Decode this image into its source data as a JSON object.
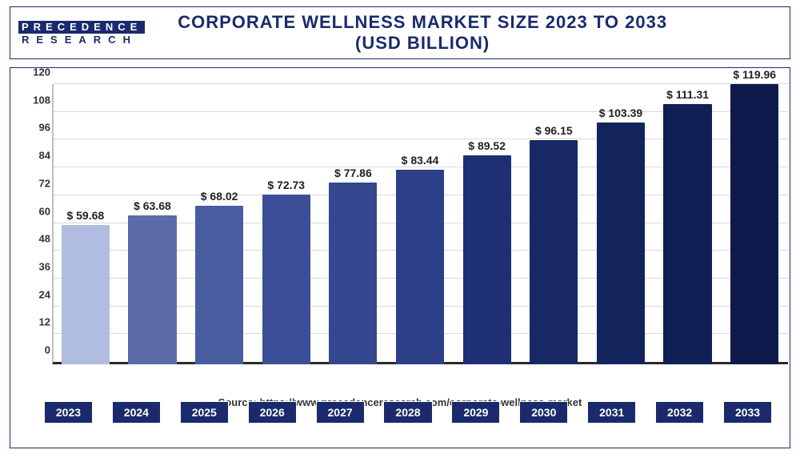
{
  "logo": {
    "line1": "PRECEDENCE",
    "line2": "RESEARCH"
  },
  "title": "CORPORATE WELLNESS MARKET SIZE 2023 TO 2033 (USD BILLION)",
  "source_label": "Source: https://www.precedenceresearch.com/corporate-wellness-market",
  "chart": {
    "type": "bar",
    "categories": [
      "2023",
      "2024",
      "2025",
      "2026",
      "2027",
      "2028",
      "2029",
      "2030",
      "2031",
      "2032",
      "2033"
    ],
    "values": [
      59.68,
      63.68,
      68.02,
      72.73,
      77.86,
      83.44,
      89.52,
      96.15,
      103.39,
      111.31,
      119.96
    ],
    "value_labels": [
      "$ 59.68",
      "$ 63.68",
      "$ 68.02",
      "$ 72.73",
      "$ 77.86",
      "$ 83.44",
      "$ 89.52",
      "$ 96.15",
      "$ 103.39",
      "$ 111.31",
      "$ 119.96"
    ],
    "bar_colors": [
      "#b1bde0",
      "#5a6ba8",
      "#4a5ca0",
      "#3c4e97",
      "#34478f",
      "#2d3f87",
      "#1e2f76",
      "#172865",
      "#13235c",
      "#101f54",
      "#0d1a4b"
    ],
    "ylim": [
      0,
      120
    ],
    "ytick_step": 12,
    "yticks": [
      0,
      12,
      24,
      36,
      48,
      60,
      72,
      84,
      96,
      108,
      120
    ],
    "title_fontsize": 22,
    "value_fontsize": 14,
    "tick_fontsize": 14,
    "background_color": "#ffffff",
    "grid_color": "#d9d9d9",
    "axis_color": "#2a2a2a",
    "x_tick_bg": "#1a2a6c",
    "x_tick_fg": "#ffffff",
    "bar_width": 0.72
  }
}
